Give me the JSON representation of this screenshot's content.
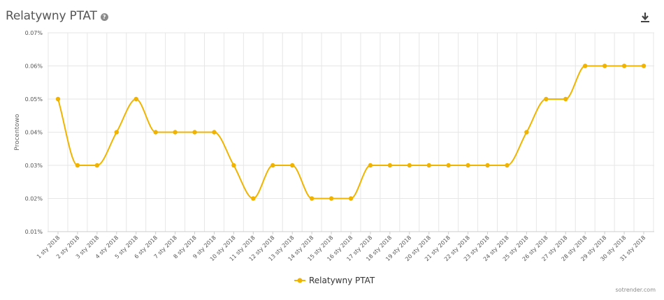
{
  "header": {
    "title": "Relatywny PTAT",
    "help_icon": "question-circle-icon",
    "download_icon": "download-icon"
  },
  "credit": "sotrender.com",
  "colors": {
    "series": "#F0B400",
    "grid": "#e6e6e6",
    "axis": "#cccccc"
  },
  "chart_data": {
    "type": "line",
    "title": "Relatywny PTAT",
    "xlabel": "",
    "ylabel": "Procentowo",
    "ylim": [
      0.01,
      0.07
    ],
    "yticks": [
      "0.01%",
      "0.02%",
      "0.03%",
      "0.04%",
      "0.05%",
      "0.06%",
      "0.07%"
    ],
    "ytick_values": [
      0.01,
      0.02,
      0.03,
      0.04,
      0.05,
      0.06,
      0.07
    ],
    "categories": [
      "1 sty 2018",
      "2 sty 2018",
      "3 sty 2018",
      "4 sty 2018",
      "5 sty 2018",
      "6 sty 2018",
      "7 sty 2018",
      "8 sty 2018",
      "9 sty 2018",
      "10 sty 2018",
      "11 sty 2018",
      "12 sty 2018",
      "13 sty 2018",
      "14 sty 2018",
      "15 sty 2018",
      "16 sty 2018",
      "17 sty 2018",
      "18 sty 2018",
      "19 sty 2018",
      "20 sty 2018",
      "21 sty 2018",
      "22 sty 2018",
      "23 sty 2018",
      "24 sty 2018",
      "25 sty 2018",
      "26 sty 2018",
      "27 sty 2018",
      "28 sty 2018",
      "29 sty 2018",
      "30 sty 2018",
      "31 sty 2018"
    ],
    "series": [
      {
        "name": "Relatywny PTAT",
        "values": [
          0.05,
          0.03,
          0.03,
          0.04,
          0.05,
          0.04,
          0.04,
          0.04,
          0.04,
          0.03,
          0.02,
          0.03,
          0.03,
          0.02,
          0.02,
          0.02,
          0.03,
          0.03,
          0.03,
          0.03,
          0.03,
          0.03,
          0.03,
          0.03,
          0.04,
          0.05,
          0.05,
          0.06,
          0.06,
          0.06,
          0.06
        ]
      }
    ],
    "grid": true,
    "legend": "bottom-center"
  }
}
